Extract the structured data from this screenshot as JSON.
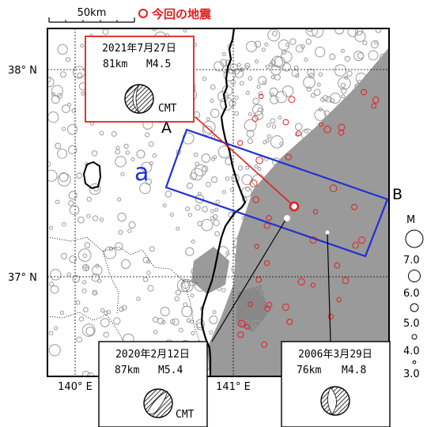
{
  "scale_bar": {
    "label": "50km"
  },
  "legend_title": "今回の地震",
  "axes": {
    "lat_labels": [
      "38° N",
      "37° N"
    ],
    "lon_labels": [
      "140° E",
      "141° E"
    ]
  },
  "section": {
    "a_label": "a",
    "start_label": "A",
    "end_label": "B"
  },
  "magnitude_legend": {
    "title": "M",
    "values": [
      "7.0",
      "6.0",
      "5.0",
      "4.0",
      "3.0"
    ]
  },
  "events": [
    {
      "date": "2021年7月27日",
      "depth": "81km",
      "magnitude": "M4.5",
      "mechanism_label": "CMT",
      "is_current": true
    },
    {
      "date": "2020年2月12日",
      "depth": "87km",
      "magnitude": "M5.4",
      "mechanism_label": "CMT",
      "is_current": false
    },
    {
      "date": "2006年3月29日",
      "depth": "76km",
      "magnitude": "M4.8",
      "mechanism_label": "",
      "is_current": false
    }
  ],
  "colors": {
    "past_events": "#9a9a9a",
    "recent_events": "#e02020",
    "section_box": "#1f2fd6",
    "current_event_callout": "#e02020",
    "coastline": "#000000"
  }
}
